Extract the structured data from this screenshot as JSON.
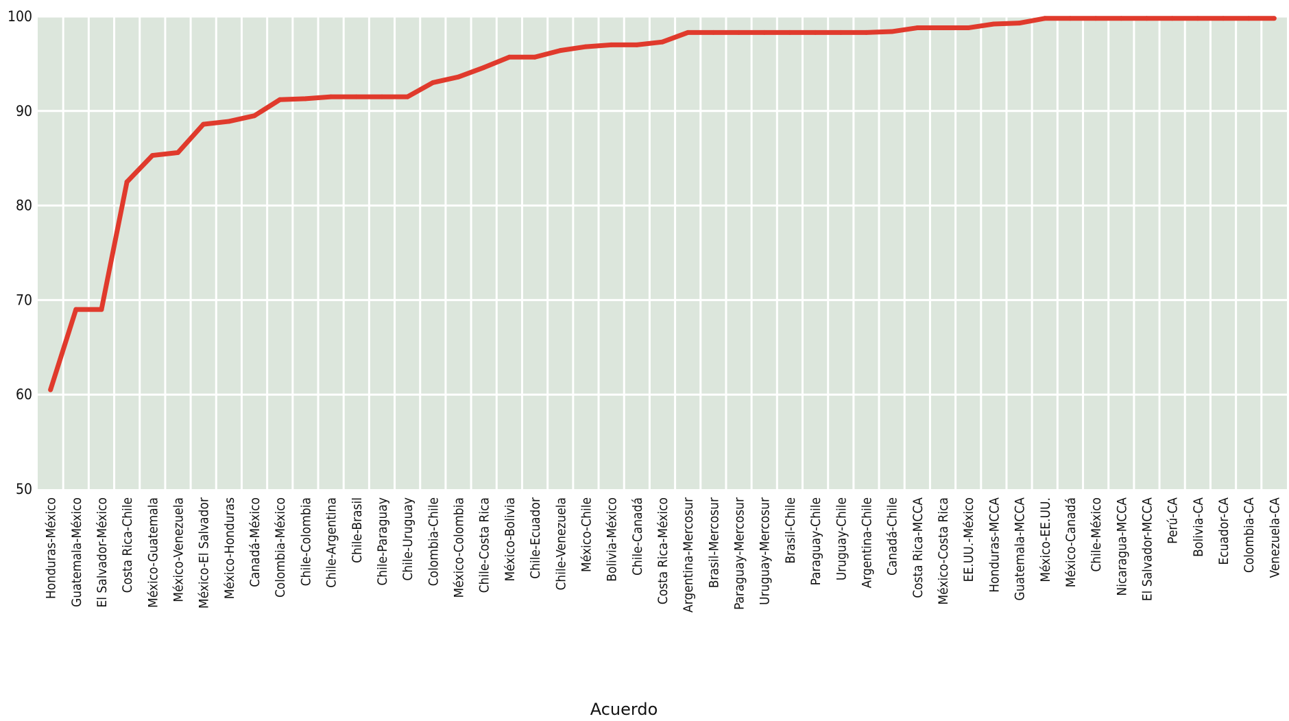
{
  "chart_data": {
    "type": "line",
    "xlabel": "Acuerdo",
    "ylabel": "",
    "ylim": [
      50,
      100
    ],
    "yticks": [
      50,
      60,
      70,
      80,
      90,
      100
    ],
    "grid": true,
    "colors": {
      "background": "#dce6dc",
      "line": "#e03a2c",
      "grid": "#ffffff"
    },
    "categories": [
      "Honduras-México",
      "Guatemala-México",
      "El Salvador-México",
      "Costa Rica-Chile",
      "México-Guatemala",
      "México-Venezuela",
      "México-El Salvador",
      "México-Honduras",
      "Canadá-México",
      "Colombia-México",
      "Chile-Colombia",
      "Chile-Argentina",
      "Chile-Brasil",
      "Chile-Paraguay",
      "Chile-Uruguay",
      "Colombia-Chile",
      "México-Colombia",
      "Chile-Costa Rica",
      "México-Bolivia",
      "Chile-Ecuador",
      "Chile-Venezuela",
      "México-Chile",
      "Bolivia-México",
      "Chile-Canadá",
      "Costa Rica-México",
      "Argentina-Mercosur",
      "Brasil-Mercosur",
      "Paraguay-Mercosur",
      "Uruguay-Mercosur",
      "Brasil-Chile",
      "Paraguay-Chile",
      "Uruguay-Chile",
      "Argentina-Chile",
      "Canadá-Chile",
      "Costa Rica-MCCA",
      "México-Costa Rica",
      "EE.UU.-México",
      "Honduras-MCCA",
      "Guatemala-MCCA",
      "México-EE.UU.",
      "México-Canadá",
      "Chile-México",
      "Nicaragua-MCCA",
      "El Salvador-MCCA",
      "Perú-CA",
      "Bolivia-CA",
      "Ecuador-CA",
      "Colombia-CA",
      "Venezuela-CA"
    ],
    "series": [
      {
        "values": [
          60.5,
          69.0,
          69.0,
          82.5,
          85.3,
          85.6,
          88.6,
          88.9,
          89.5,
          91.2,
          91.3,
          91.5,
          91.5,
          91.5,
          91.5,
          93.0,
          93.6,
          94.6,
          95.7,
          95.7,
          96.4,
          96.8,
          97.0,
          97.0,
          97.3,
          98.3,
          98.3,
          98.3,
          98.3,
          98.3,
          98.3,
          98.3,
          98.3,
          98.4,
          98.8,
          98.8,
          98.8,
          99.2,
          99.3,
          99.8,
          99.8,
          99.8,
          99.8,
          99.8,
          99.8,
          99.8,
          99.8,
          99.8,
          99.8
        ]
      }
    ]
  }
}
